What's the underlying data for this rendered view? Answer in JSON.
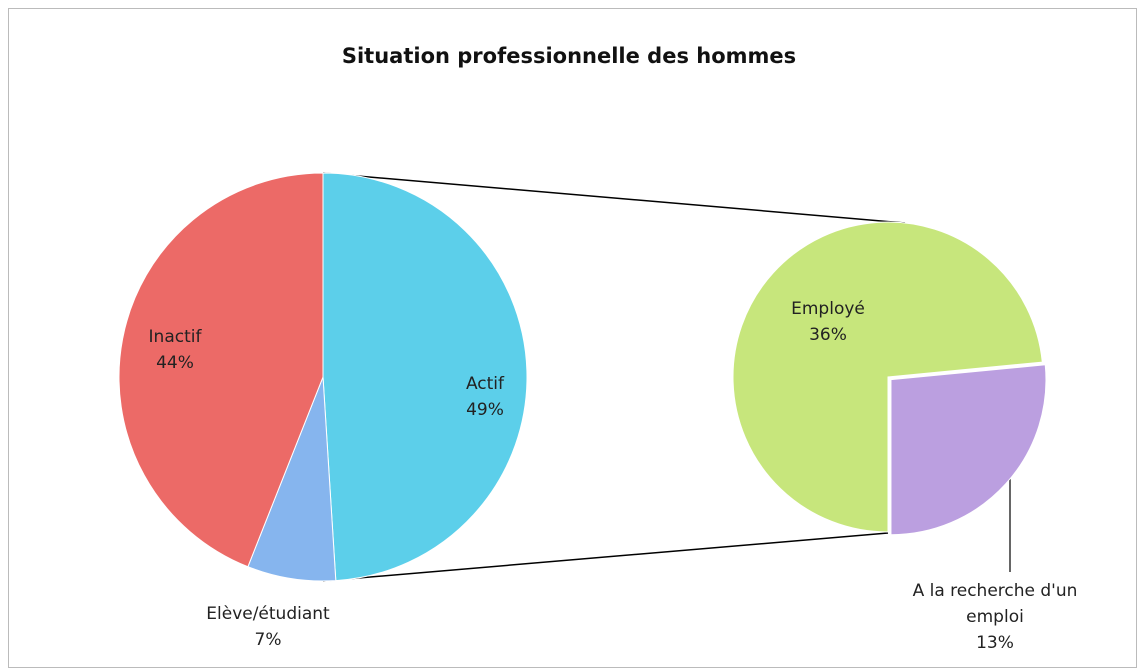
{
  "chart_data": {
    "type": "pie-of-pie",
    "title": "Situation professionnelle des hommes",
    "categories": [
      "Actif",
      "Elève/étudiant",
      "Inactif"
    ],
    "values": [
      49,
      7,
      44
    ],
    "value_labels": [
      "49%",
      "7%",
      "44%"
    ],
    "colors": [
      "#5ccfea",
      "#86b5ee",
      "#ec6a67"
    ],
    "secondary": {
      "categories": [
        "Employé",
        "A la recherche d'un emploi"
      ],
      "values": [
        36,
        13
      ],
      "value_labels": [
        "36%",
        "13%"
      ],
      "colors": [
        "#c7e67c",
        "#bb9fe0"
      ]
    }
  }
}
